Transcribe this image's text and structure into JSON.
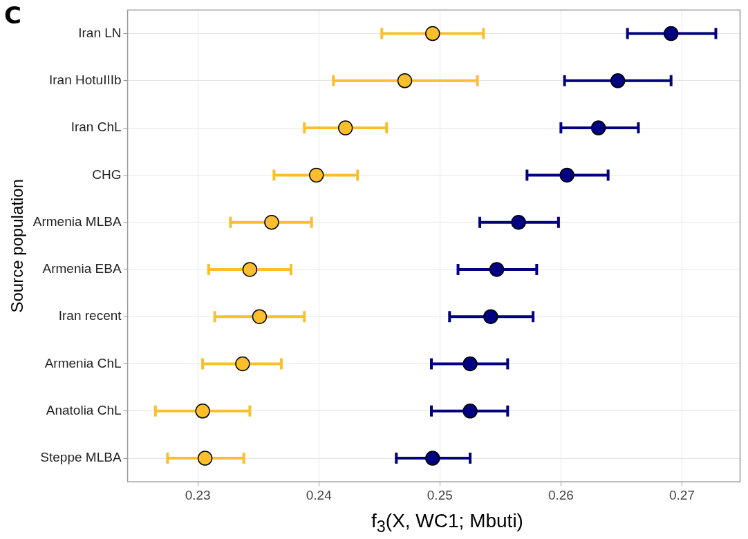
{
  "chart_data": {
    "type": "scatter",
    "orientation": "horizontal",
    "title": "C",
    "xlabel": "f$_{3}$(X, WC1; Mbuti)",
    "ylabel": "Source population",
    "categories": [
      "Iran LN",
      "Iran HotuIIIb",
      "Iran ChL",
      "CHG",
      "Armenia MLBA",
      "Armenia EBA",
      "Iran recent",
      "Armenia ChL",
      "Anatolia ChL",
      "Steppe MLBA"
    ],
    "series": [
      {
        "color": "#fbbf2c",
        "values": [
          0.2494,
          0.2471,
          0.2422,
          0.2398,
          0.2361,
          0.2343,
          0.2351,
          0.2337,
          0.2304,
          0.2306
        ],
        "errors": [
          [
            0.2452,
            0.2536
          ],
          [
            0.2412,
            0.2531
          ],
          [
            0.2388,
            0.2456
          ],
          [
            0.2363,
            0.2432
          ],
          [
            0.2327,
            0.2394
          ],
          [
            0.2309,
            0.2377
          ],
          [
            0.2314,
            0.2388
          ],
          [
            0.2304,
            0.2369
          ],
          [
            0.2265,
            0.2343
          ],
          [
            0.2275,
            0.2338
          ]
        ]
      },
      {
        "color": "#000080",
        "values": [
          0.2691,
          0.2647,
          0.2631,
          0.2605,
          0.2565,
          0.2547,
          0.2542,
          0.2525,
          0.2525,
          0.2494
        ],
        "errors": [
          [
            0.2655,
            0.2728
          ],
          [
            0.2603,
            0.2691
          ],
          [
            0.26,
            0.2664
          ],
          [
            0.2572,
            0.2639
          ],
          [
            0.2533,
            0.2598
          ],
          [
            0.2515,
            0.258
          ],
          [
            0.2508,
            0.2577
          ],
          [
            0.2493,
            0.2556
          ],
          [
            0.2493,
            0.2556
          ],
          [
            0.2464,
            0.2525
          ]
        ]
      }
    ],
    "xlim": [
      0.2242,
      0.2748
    ],
    "xticks": [
      0.23,
      0.24,
      0.25,
      0.26,
      0.27
    ],
    "grid": true,
    "legend": false,
    "marker": "circle"
  }
}
